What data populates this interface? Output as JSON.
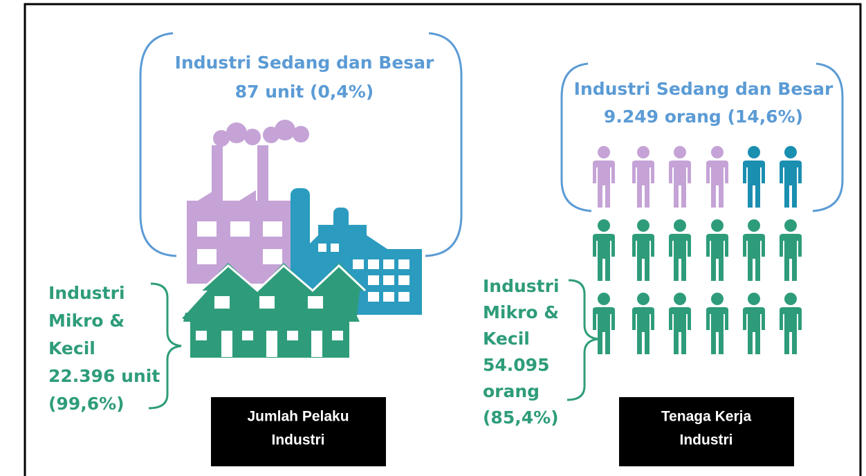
{
  "left": {
    "top_label": [
      "Industri Sedang dan Besar",
      "87 unit (0,4%)"
    ],
    "bottom_label": [
      "Industri",
      "Mikro &",
      "Kecil",
      "22.396 unit",
      "(99,6%)"
    ],
    "caption": [
      "Jumlah Pelaku",
      "Industri"
    ]
  },
  "right": {
    "top_label": [
      "Industri Sedang dan Besar",
      "9.249 orang (14,6%)"
    ],
    "bottom_label": [
      "Industri",
      "Mikro &",
      "Kecil",
      "54.095",
      "orang",
      "(85,4%)"
    ],
    "caption": [
      "Tenaga Kerja",
      "Industri"
    ]
  }
}
